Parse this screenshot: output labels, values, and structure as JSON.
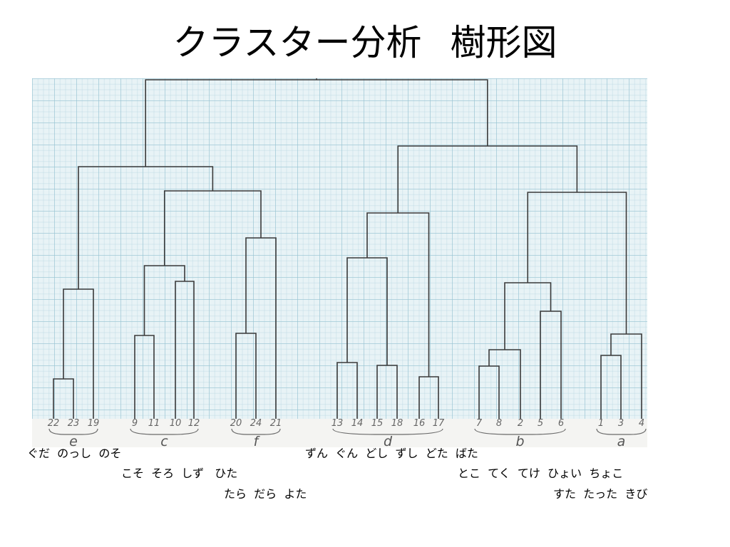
{
  "title": {
    "main": "クラスター分析",
    "sub": "樹形図"
  },
  "dendrogram": {
    "leaves": [
      "22",
      "23",
      "19",
      "9",
      "11",
      "10",
      "12",
      "20",
      "24",
      "21",
      "13",
      "14",
      "15",
      "18",
      "16",
      "17",
      "7",
      "8",
      "2",
      "5",
      "6",
      "1",
      "3",
      "4"
    ],
    "groups": [
      {
        "letter": "e",
        "members": [
          "22",
          "23",
          "19"
        ]
      },
      {
        "letter": "c",
        "members": [
          "9",
          "11",
          "10",
          "12"
        ]
      },
      {
        "letter": "f",
        "members": [
          "20",
          "24",
          "21"
        ]
      },
      {
        "letter": "d",
        "members": [
          "13",
          "14",
          "15",
          "18",
          "16",
          "17"
        ]
      },
      {
        "letter": "b",
        "members": [
          "7",
          "8",
          "2",
          "5",
          "6"
        ]
      },
      {
        "letter": "a",
        "members": [
          "1",
          "3",
          "4"
        ]
      }
    ]
  },
  "names": {
    "left_row1": "ぐだ  のっし  のそ",
    "left_row2": "こそ  そろ  しず   ひた",
    "left_row3": "たら  だら  よた",
    "right_row1": "ずん  ぐん  どし  ずし  どた  ばた",
    "right_row2": "とこ  てく  てけ  ひょい  ちょこ",
    "right_row3": "すた  たった  きび"
  },
  "colors": {
    "grid_paper": "#e8f3f6",
    "ink": "#3a3a3a"
  }
}
